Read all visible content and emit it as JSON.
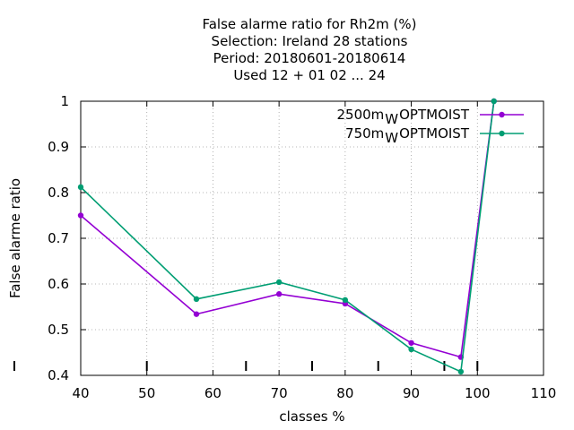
{
  "chart_data": {
    "type": "line",
    "title_lines": [
      "False alarme ratio  for Rh2m (%)",
      "Selection: Ireland     28 stations",
      "Period: 20180601-20180614",
      "Used  12 + 01 02 ... 24"
    ],
    "xlabel": "classes %",
    "ylabel": "False alarme ratio",
    "xlim": [
      40,
      110
    ],
    "ylim": [
      0.4,
      1.0
    ],
    "xticks": [
      40,
      50,
      60,
      70,
      80,
      90,
      100,
      110
    ],
    "xtick_labels": [
      "40",
      "50",
      "60",
      "70",
      "80",
      "90",
      "100",
      "110"
    ],
    "yticks": [
      0.4,
      0.5,
      0.6,
      0.7,
      0.8,
      0.9,
      1.0
    ],
    "ytick_labels": [
      "0.4",
      "0.5",
      "0.6",
      "0.7",
      "0.8",
      "0.9",
      "1"
    ],
    "class_marks_x": [
      50,
      65,
      75,
      85,
      95,
      100
    ],
    "grid": true,
    "legend_position": "top-right",
    "series": [
      {
        "name_main": "2500m",
        "name_sub": "W",
        "name_tail": "OPTMOIST",
        "color": "#9400d3",
        "x": [
          40,
          57.5,
          70,
          80,
          90,
          97.5,
          102.5
        ],
        "y": [
          0.75,
          0.534,
          0.578,
          0.557,
          0.471,
          0.44,
          1.0
        ]
      },
      {
        "name_main": "750m",
        "name_sub": "W",
        "name_tail": "OPTMOIST",
        "color": "#009e73",
        "x": [
          40,
          57.5,
          70,
          80,
          90,
          97.5,
          102.5
        ],
        "y": [
          0.812,
          0.567,
          0.604,
          0.565,
          0.457,
          0.408,
          1.0
        ]
      }
    ]
  }
}
